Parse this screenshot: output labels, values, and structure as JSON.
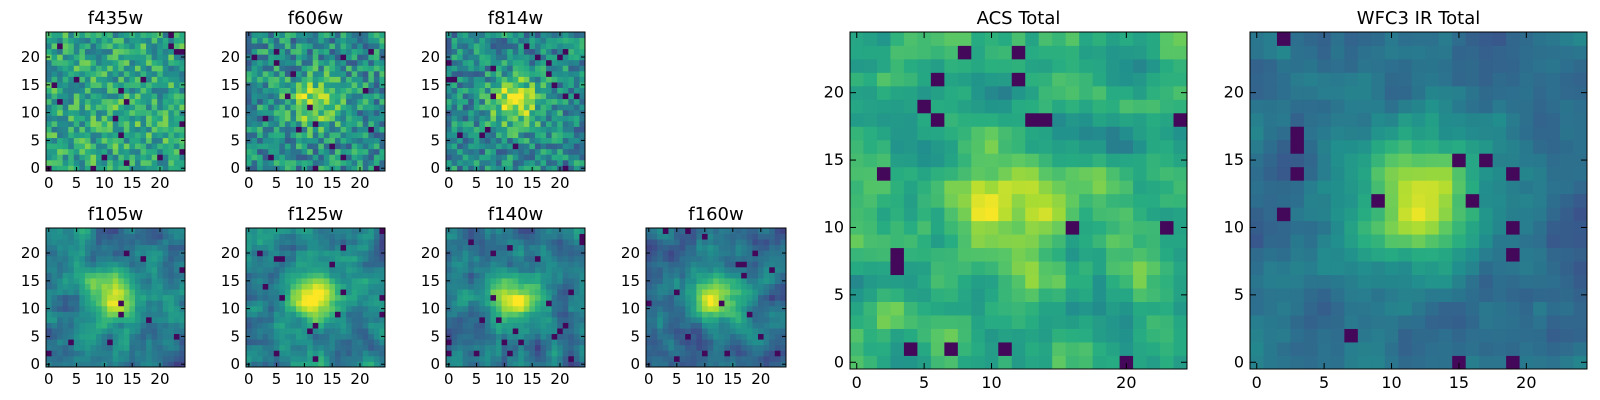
{
  "chart_data": [
    {
      "type": "heatmap",
      "title": "f435w",
      "xlim": [
        0,
        25
      ],
      "ylim": [
        0,
        25
      ],
      "xticks": [
        "0",
        "5",
        "10",
        "15",
        "20"
      ],
      "yticks": [
        "0",
        "5",
        "10",
        "15",
        "20"
      ],
      "blob": {
        "x": 12,
        "y": 9,
        "amplitude": 0.05
      },
      "noise": 0.42,
      "base": 0.6,
      "seed": 11
    },
    {
      "type": "heatmap",
      "title": "f606w",
      "xlim": [
        0,
        25
      ],
      "ylim": [
        0,
        25
      ],
      "xticks": [
        "0",
        "5",
        "10",
        "15",
        "20"
      ],
      "yticks": [
        "0",
        "5",
        "10",
        "15",
        "20"
      ],
      "blob": {
        "x": 12,
        "y": 12,
        "amplitude": 0.38
      },
      "noise": 0.45,
      "base": 0.5,
      "seed": 23
    },
    {
      "type": "heatmap",
      "title": "f814w",
      "xlim": [
        0,
        25
      ],
      "ylim": [
        0,
        25
      ],
      "xticks": [
        "0",
        "5",
        "10",
        "15",
        "20"
      ],
      "yticks": [
        "0",
        "5",
        "10",
        "15",
        "20"
      ],
      "blob": {
        "x": 12,
        "y": 12,
        "amplitude": 0.45
      },
      "noise": 0.42,
      "base": 0.48,
      "seed": 37
    },
    {
      "type": "heatmap",
      "title": "f105w",
      "xlim": [
        0,
        25
      ],
      "ylim": [
        0,
        25
      ],
      "xticks": [
        "0",
        "5",
        "10",
        "15",
        "20"
      ],
      "yticks": [
        "0",
        "5",
        "10",
        "15",
        "20"
      ],
      "blob": {
        "x": 12,
        "y": 12,
        "amplitude": 0.55
      },
      "noise": 0.32,
      "base": 0.42,
      "seed": 41
    },
    {
      "type": "heatmap",
      "title": "f125w",
      "xlim": [
        0,
        25
      ],
      "ylim": [
        0,
        25
      ],
      "xticks": [
        "0",
        "5",
        "10",
        "15",
        "20"
      ],
      "yticks": [
        "0",
        "5",
        "10",
        "15",
        "20"
      ],
      "blob": {
        "x": 12,
        "y": 12,
        "amplitude": 0.55
      },
      "noise": 0.32,
      "base": 0.45,
      "seed": 53
    },
    {
      "type": "heatmap",
      "title": "f140w",
      "xlim": [
        0,
        25
      ],
      "ylim": [
        0,
        25
      ],
      "xticks": [
        "0",
        "5",
        "10",
        "15",
        "20"
      ],
      "yticks": [
        "0",
        "5",
        "10",
        "15",
        "20"
      ],
      "blob": {
        "x": 12,
        "y": 12,
        "amplitude": 0.5
      },
      "noise": 0.32,
      "base": 0.4,
      "seed": 67
    },
    {
      "type": "heatmap",
      "title": "f160w",
      "xlim": [
        0,
        25
      ],
      "ylim": [
        0,
        25
      ],
      "xticks": [
        "0",
        "5",
        "10",
        "15",
        "20"
      ],
      "yticks": [
        "0",
        "5",
        "10",
        "15",
        "20"
      ],
      "blob": {
        "x": 12,
        "y": 12,
        "amplitude": 0.6
      },
      "noise": 0.28,
      "base": 0.36,
      "seed": 79
    },
    {
      "type": "heatmap",
      "title": "ACS Total",
      "xlim": [
        0,
        25
      ],
      "ylim": [
        0,
        25
      ],
      "xticks": [
        "0",
        "5",
        "10",
        "20"
      ],
      "yticks": [
        "0",
        "5",
        "10",
        "15",
        "20"
      ],
      "blob": {
        "x": 12,
        "y": 12,
        "amplitude": 0.28
      },
      "noise": 0.32,
      "base": 0.62,
      "seed": 97
    },
    {
      "type": "heatmap",
      "title": "WFC3 IR Total",
      "xlim": [
        0,
        25
      ],
      "ylim": [
        0,
        25
      ],
      "xticks": [
        "0",
        "5",
        "10",
        "15",
        "20"
      ],
      "yticks": [
        "0",
        "5",
        "10",
        "15",
        "20"
      ],
      "blob": {
        "x": 12,
        "y": 12,
        "amplitude": 0.6
      },
      "noise": 0.18,
      "base": 0.38,
      "seed": 113
    }
  ]
}
